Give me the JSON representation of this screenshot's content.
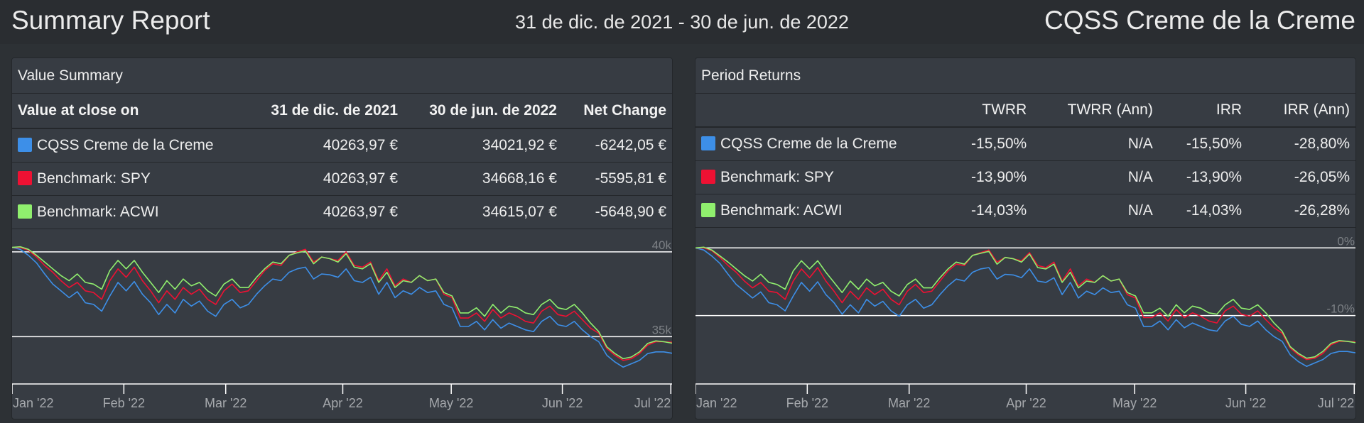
{
  "header": {
    "title": "Summary Report",
    "date_range": "31 de dic. de 2021 - 30 de jun. de 2022",
    "portfolio": "CQSS Creme de la Creme"
  },
  "colors": {
    "portfolio": "#3d8fe8",
    "spy": "#ee1133",
    "acwi": "#90ef6e"
  },
  "value_summary": {
    "title": "Value Summary",
    "columns": [
      "Value at close on",
      "31 de dic. de 2021",
      "30 de jun. de 2022",
      "Net Change"
    ],
    "rows": [
      {
        "name": "CQSS Creme de la Creme",
        "color": "#3d8fe8",
        "start": "40263,97 €",
        "end": "34021,92 €",
        "change": "-6242,05 €"
      },
      {
        "name": "Benchmark: SPY",
        "color": "#ee1133",
        "start": "40263,97 €",
        "end": "34668,16 €",
        "change": "-5595,81 €"
      },
      {
        "name": "Benchmark: ACWI",
        "color": "#90ef6e",
        "start": "40263,97 €",
        "end": "34615,07 €",
        "change": "-5648,90 €"
      }
    ]
  },
  "period_returns": {
    "title": "Period Returns",
    "columns": [
      "",
      "TWRR",
      "TWRR (Ann)",
      "IRR",
      "IRR (Ann)"
    ],
    "rows": [
      {
        "name": "CQSS Creme de la Creme",
        "color": "#3d8fe8",
        "twrr": "-15,50%",
        "twrr_ann": "N/A",
        "irr": "-15,50%",
        "irr_ann": "-28,80%"
      },
      {
        "name": "Benchmark: SPY",
        "color": "#ee1133",
        "twrr": "-13,90%",
        "twrr_ann": "N/A",
        "irr": "-13,90%",
        "irr_ann": "-26,05%"
      },
      {
        "name": "Benchmark: ACWI",
        "color": "#90ef6e",
        "twrr": "-14,03%",
        "twrr_ann": "N/A",
        "irr": "-14,03%",
        "irr_ann": "-26,28%"
      }
    ]
  },
  "chart_data": [
    {
      "type": "line",
      "x_ticks": [
        "Jan '22",
        "Feb '22",
        "Mar '22",
        "Apr '22",
        "May '22",
        "Jun '22",
        "Jul '22"
      ],
      "y_ticks": [
        "40k",
        "35k"
      ],
      "y_tick_values": [
        40000,
        35000
      ],
      "ylim": [
        32250,
        40750
      ],
      "grid": true,
      "series": [
        {
          "name": "CQSS Creme de la Creme",
          "color": "#3d8fe8",
          "values": [
            40264,
            40150,
            39800,
            39350,
            38700,
            38100,
            37700,
            37300,
            37650,
            37000,
            36900,
            36500,
            37400,
            38200,
            37700,
            38250,
            37500,
            37000,
            36300,
            36900,
            36400,
            37200,
            36800,
            37100,
            36500,
            36200,
            36900,
            37200,
            36700,
            36900,
            37500,
            38000,
            38400,
            38300,
            38800,
            39000,
            39100,
            38400,
            38700,
            38650,
            38500,
            39000,
            38300,
            38200,
            38500,
            37500,
            38200,
            37300,
            37700,
            37500,
            37900,
            37600,
            37700,
            36900,
            36700,
            35600,
            35600,
            35900,
            35400,
            36000,
            35500,
            35800,
            35600,
            35400,
            35300,
            35900,
            36200,
            35700,
            35600,
            35900,
            35400,
            35000,
            34700,
            33900,
            33500,
            33200,
            33400,
            33600,
            34000,
            34100,
            34100,
            34021
          ]
        },
        {
          "name": "Benchmark: SPY",
          "color": "#ee1133",
          "values": [
            40264,
            40250,
            40100,
            39700,
            39200,
            38800,
            38300,
            37900,
            38200,
            37700,
            37600,
            37200,
            38300,
            39000,
            38500,
            39100,
            38300,
            37700,
            37000,
            37700,
            37200,
            37900,
            37500,
            37800,
            37200,
            36900,
            37700,
            38100,
            37600,
            37700,
            38300,
            38900,
            39300,
            39200,
            39800,
            40000,
            40150,
            39400,
            39700,
            39600,
            39500,
            40000,
            39200,
            39100,
            39400,
            38300,
            39000,
            38000,
            38400,
            38200,
            38600,
            38300,
            38400,
            37500,
            37300,
            36100,
            36100,
            36400,
            35900,
            36600,
            36100,
            36400,
            36200,
            35900,
            35800,
            36500,
            36800,
            36300,
            36200,
            36500,
            36000,
            35500,
            35200,
            34300,
            33900,
            33600,
            33700,
            34000,
            34500,
            34700,
            34700,
            34668
          ]
        },
        {
          "name": "Benchmark: ACWI",
          "color": "#90ef6e",
          "values": [
            40264,
            40300,
            40150,
            39800,
            39400,
            39000,
            38600,
            38300,
            38700,
            38200,
            38100,
            37800,
            38900,
            39500,
            39000,
            39500,
            38800,
            38200,
            37600,
            38300,
            37800,
            38400,
            38000,
            38200,
            37700,
            37400,
            38100,
            38400,
            37900,
            37900,
            38500,
            39000,
            39400,
            39300,
            39800,
            39950,
            40050,
            39300,
            39700,
            39600,
            39400,
            39900,
            39100,
            39000,
            39300,
            38200,
            38800,
            37900,
            38300,
            38200,
            38600,
            38300,
            38400,
            37600,
            37400,
            36400,
            36400,
            36700,
            36200,
            36900,
            36400,
            36800,
            36700,
            36400,
            36300,
            36900,
            37200,
            36700,
            36600,
            36900,
            36400,
            35800,
            35300,
            34400,
            34000,
            33700,
            33800,
            34100,
            34600,
            34750,
            34700,
            34615
          ]
        }
      ]
    },
    {
      "type": "line",
      "x_ticks": [
        "Jan '22",
        "Feb '22",
        "Mar '22",
        "Apr '22",
        "May '22",
        "Jun '22",
        "Jul '22"
      ],
      "y_ticks": [
        "0%",
        "-10%"
      ],
      "y_tick_values": [
        0,
        -10
      ],
      "ylim": [
        -20,
        1.5
      ],
      "grid": true,
      "series": [
        {
          "name": "CQSS Creme de la Creme",
          "color": "#3d8fe8",
          "values": [
            0,
            -0.3,
            -1.2,
            -2.3,
            -3.9,
            -5.4,
            -6.4,
            -7.4,
            -6.5,
            -8.1,
            -8.4,
            -9.3,
            -7.1,
            -5.1,
            -6.4,
            -5.0,
            -6.9,
            -8.1,
            -9.8,
            -8.4,
            -9.6,
            -7.6,
            -8.6,
            -7.9,
            -9.3,
            -10.1,
            -8.4,
            -7.6,
            -8.9,
            -8.4,
            -6.9,
            -5.6,
            -4.6,
            -4.9,
            -3.6,
            -3.1,
            -2.9,
            -4.6,
            -3.9,
            -4.0,
            -4.4,
            -3.1,
            -4.9,
            -5.1,
            -4.4,
            -6.9,
            -5.1,
            -7.4,
            -6.4,
            -6.9,
            -5.9,
            -6.6,
            -6.4,
            -8.4,
            -8.9,
            -11.6,
            -11.6,
            -10.8,
            -12.1,
            -10.6,
            -11.8,
            -11.1,
            -11.6,
            -12.1,
            -12.3,
            -10.8,
            -10.1,
            -11.3,
            -11.6,
            -10.8,
            -12.1,
            -13.1,
            -13.8,
            -15.8,
            -16.8,
            -17.5,
            -17.0,
            -16.5,
            -15.6,
            -15.3,
            -15.3,
            -15.5
          ]
        },
        {
          "name": "Benchmark: SPY",
          "color": "#ee1133",
          "values": [
            0,
            0,
            -0.4,
            -1.4,
            -2.6,
            -3.6,
            -4.9,
            -5.9,
            -5.1,
            -6.4,
            -6.6,
            -7.6,
            -4.9,
            -3.1,
            -4.4,
            -2.9,
            -4.9,
            -6.4,
            -8.1,
            -6.4,
            -7.6,
            -5.9,
            -6.9,
            -6.1,
            -7.6,
            -8.4,
            -6.4,
            -5.4,
            -6.6,
            -6.4,
            -4.9,
            -3.4,
            -2.4,
            -2.6,
            -1.1,
            -0.7,
            -0.3,
            -2.1,
            -1.4,
            -1.6,
            -1.9,
            -0.7,
            -2.6,
            -2.9,
            -2.1,
            -4.9,
            -3.1,
            -5.6,
            -4.6,
            -5.1,
            -4.1,
            -4.9,
            -4.6,
            -6.9,
            -7.4,
            -10.3,
            -10.3,
            -9.6,
            -10.8,
            -9.1,
            -10.3,
            -9.6,
            -10.1,
            -10.8,
            -11.1,
            -9.3,
            -8.6,
            -9.8,
            -10.1,
            -9.3,
            -10.6,
            -11.8,
            -12.6,
            -14.8,
            -15.8,
            -16.5,
            -16.3,
            -15.6,
            -14.3,
            -13.8,
            -13.8,
            -13.9
          ]
        },
        {
          "name": "Benchmark: ACWI",
          "color": "#90ef6e",
          "values": [
            0,
            0.1,
            -0.3,
            -1.2,
            -2.1,
            -3.1,
            -4.1,
            -4.9,
            -3.9,
            -5.1,
            -5.4,
            -6.1,
            -3.4,
            -1.9,
            -3.1,
            -1.9,
            -3.6,
            -5.1,
            -6.6,
            -4.9,
            -6.1,
            -4.6,
            -5.6,
            -5.1,
            -6.4,
            -7.1,
            -5.4,
            -4.6,
            -5.9,
            -5.9,
            -4.4,
            -3.1,
            -2.1,
            -2.4,
            -1.1,
            -0.8,
            -0.5,
            -2.4,
            -1.4,
            -1.6,
            -2.1,
            -0.9,
            -2.9,
            -3.1,
            -2.4,
            -5.1,
            -3.6,
            -5.9,
            -4.9,
            -5.1,
            -4.1,
            -4.9,
            -4.6,
            -6.6,
            -7.1,
            -9.6,
            -9.6,
            -8.9,
            -10.1,
            -8.4,
            -9.6,
            -8.6,
            -8.9,
            -9.6,
            -9.8,
            -8.4,
            -7.6,
            -8.9,
            -9.1,
            -8.4,
            -9.6,
            -11.1,
            -12.3,
            -14.6,
            -15.6,
            -16.3,
            -16.1,
            -15.3,
            -14.1,
            -13.7,
            -13.8,
            -14.0
          ]
        }
      ]
    }
  ]
}
